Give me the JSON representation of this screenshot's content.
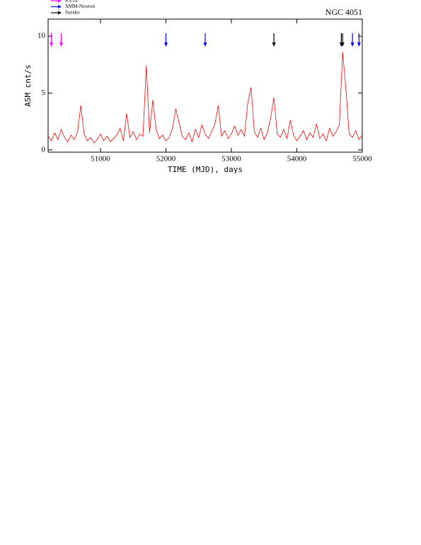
{
  "chart_data": {
    "type": "line",
    "title": "NGC 4051",
    "xlabel": "TIME (MJD), days",
    "ylabel": "ASM cnt/s",
    "xlim": [
      50200,
      55000
    ],
    "xticks": [
      51000,
      52000,
      53000,
      54000,
      55000
    ],
    "ylim": [
      -0.2,
      11.5
    ],
    "yticks": [
      0,
      5,
      10
    ],
    "series": [
      {
        "name": "ASM",
        "color": "#ff0000",
        "x": [
          50200,
          50250,
          50300,
          50350,
          50400,
          50450,
          50500,
          50550,
          50600,
          50650,
          50700,
          50750,
          50800,
          50850,
          50900,
          50950,
          51000,
          51050,
          51100,
          51150,
          51200,
          51250,
          51300,
          51350,
          51400,
          51450,
          51500,
          51550,
          51600,
          51650,
          51700,
          51750,
          51800,
          51850,
          51900,
          51950,
          52000,
          52050,
          52100,
          52150,
          52200,
          52250,
          52300,
          52350,
          52400,
          52450,
          52500,
          52550,
          52600,
          52650,
          52700,
          52750,
          52800,
          52850,
          52900,
          52950,
          53000,
          53050,
          53100,
          53150,
          53200,
          53250,
          53300,
          53350,
          53400,
          53450,
          53500,
          53550,
          53600,
          53650,
          53700,
          53750,
          53800,
          53850,
          53900,
          53950,
          54000,
          54050,
          54100,
          54150,
          54200,
          54250,
          54300,
          54350,
          54400,
          54450,
          54500,
          54550,
          54600,
          54650,
          54700,
          54750,
          54800,
          54850,
          54900,
          54950,
          55000
        ],
        "values": [
          1.2,
          0.8,
          1.5,
          0.9,
          1.8,
          1.1,
          0.7,
          1.3,
          0.9,
          1.6,
          3.9,
          1.4,
          0.8,
          1.1,
          0.6,
          0.9,
          1.4,
          0.8,
          1.2,
          0.7,
          1.0,
          1.3,
          1.9,
          0.8,
          3.2,
          1.1,
          1.6,
          0.9,
          1.4,
          1.2,
          7.4,
          1.5,
          4.4,
          1.8,
          1.0,
          1.3,
          0.8,
          1.1,
          1.9,
          3.6,
          2.4,
          1.2,
          0.9,
          1.5,
          0.7,
          1.8,
          1.1,
          2.2,
          1.4,
          1.0,
          1.6,
          2.3,
          3.9,
          1.2,
          1.7,
          1.0,
          1.4,
          2.1,
          1.3,
          1.8,
          1.2,
          4.1,
          5.5,
          1.6,
          1.1,
          1.9,
          0.9,
          1.5,
          2.8,
          4.6,
          1.4,
          1.1,
          1.8,
          1.0,
          2.6,
          1.3,
          0.8,
          1.2,
          1.7,
          0.9,
          1.5,
          1.1,
          2.3,
          1.0,
          1.4,
          0.8,
          1.9,
          1.2,
          1.6,
          2.2,
          8.6,
          5.3,
          1.4,
          1.1,
          1.7,
          0.9,
          1.3
        ]
      }
    ],
    "observations": [
      {
        "name": "RXTE",
        "color": "#ff00ff",
        "x": [
          50250,
          50400
        ]
      },
      {
        "name": "XMM-Newton",
        "color": "#0000ff",
        "x": [
          52000,
          52600,
          54850,
          54950
        ]
      },
      {
        "name": "Suzaku",
        "color": "#000000",
        "x": [
          53650,
          54680,
          54700
        ]
      }
    ]
  }
}
